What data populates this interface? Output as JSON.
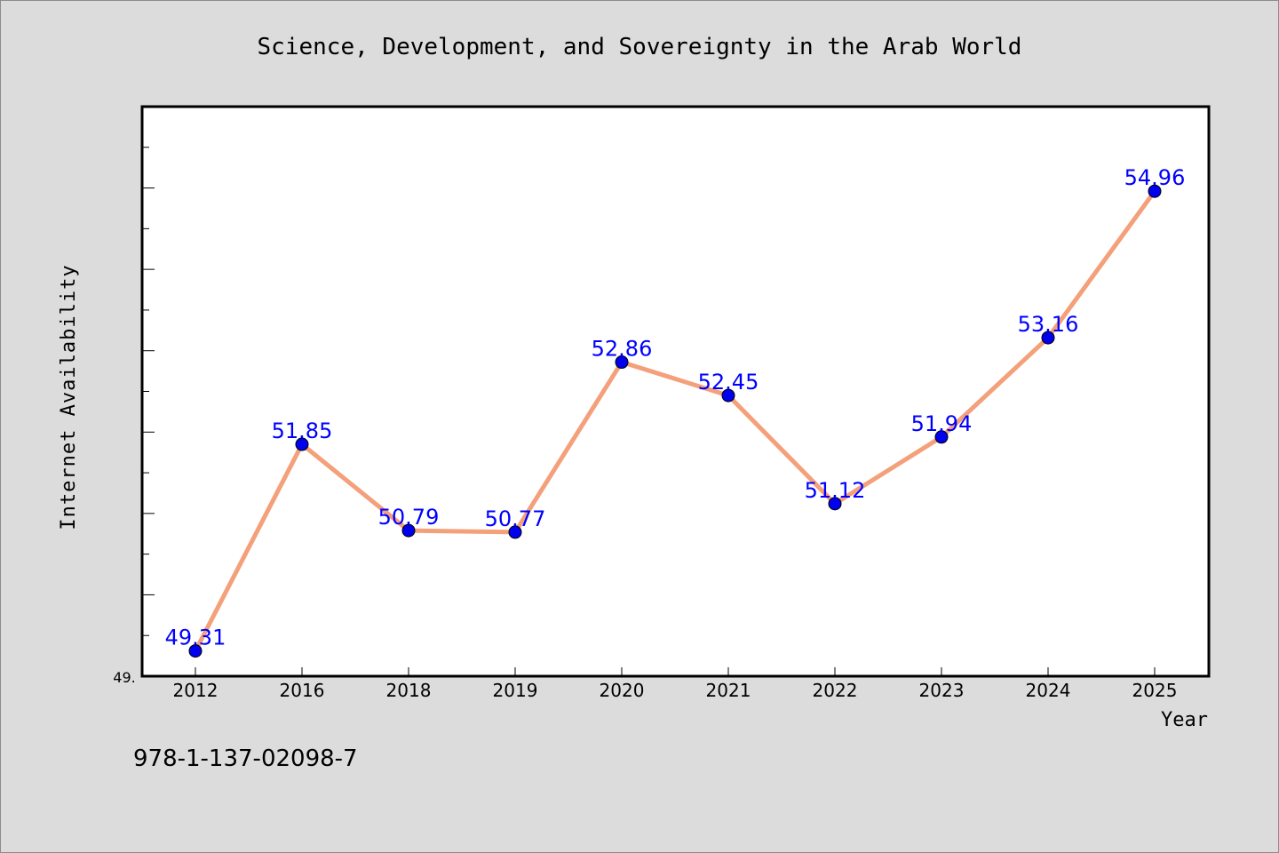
{
  "chart_data": {
    "type": "line",
    "title": "Science, Development, and Sovereignty in the Arab World",
    "xlabel": "Year",
    "ylabel": "Internet Availability",
    "y_axis_start_label": "49.",
    "categories": [
      "2012",
      "2016",
      "2018",
      "2019",
      "2020",
      "2021",
      "2022",
      "2023",
      "2024",
      "2025"
    ],
    "series": [
      {
        "values": [
          49.31,
          51.85,
          50.79,
          50.77,
          52.86,
          52.45,
          51.12,
          51.94,
          53.16,
          54.96
        ],
        "value_labels": [
          "49.31",
          "51.85",
          "50.79",
          "50.77",
          "52.86",
          "52.45",
          "51.12",
          "51.94",
          "53.16",
          "54.96"
        ],
        "line_color": "#f4a07a",
        "marker_color": "#0000ee",
        "label_color": "#0000ff"
      }
    ],
    "ylim": [
      49.0,
      56.0
    ],
    "grid": false,
    "legend": "none"
  },
  "footer": {
    "isbn": "978-1-137-02098-7"
  },
  "colors": {
    "background": "#dcdcdc",
    "plot_background": "#ffffff",
    "axis": "#000000"
  }
}
